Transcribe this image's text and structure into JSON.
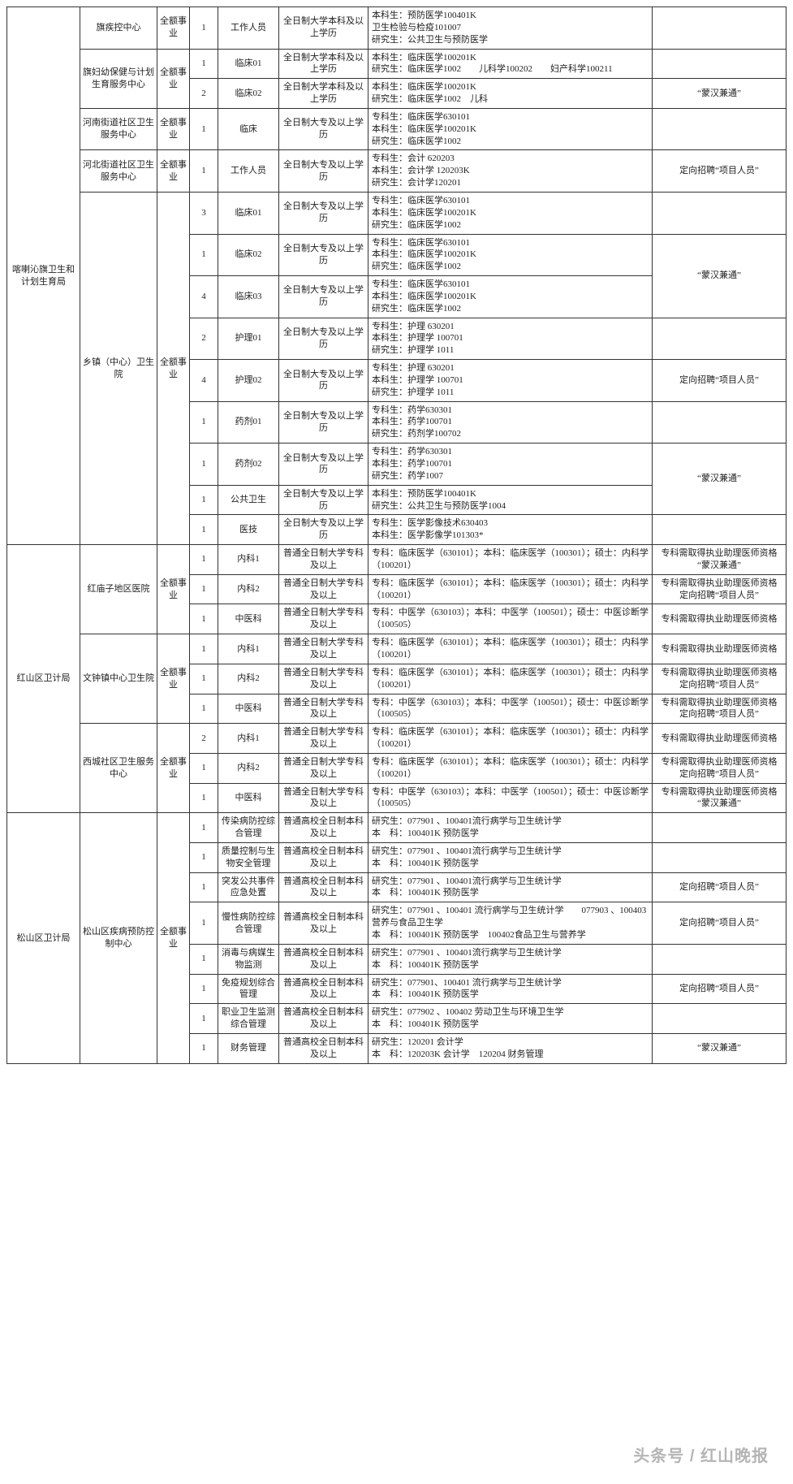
{
  "rows": [
    {
      "d": "喀喇沁旗卫生和计划生育局",
      "dspan": 14,
      "u": "旗疾控中心",
      "uspan": 1,
      "t": "全额事业",
      "tspan": 1,
      "n": "1",
      "p": "工作人员",
      "e": "全日制大学本科及以上学历",
      "m": "本科生：预防医学100401K\n卫生检验与检疫101007\n研究生：公共卫生与预防医学",
      "r": ""
    },
    {
      "u": "旗妇幼保健与计划生育服务中心",
      "uspan": 2,
      "t": "全额事业",
      "tspan": 2,
      "n": "1",
      "p": "临床01",
      "e": "全日制大学本科及以上学历",
      "m": "本科生：临床医学100201K\n研究生：临床医学1002　　儿科学100202　　妇产科学100211",
      "r": ""
    },
    {
      "n": "2",
      "p": "临床02",
      "e": "全日制大学本科及以上学历",
      "m": "本科生：临床医学100201K\n研究生：临床医学1002　儿科",
      "r": "“蒙汉兼通”"
    },
    {
      "u": "河南街道社区卫生服务中心",
      "uspan": 1,
      "t": "全额事业",
      "tspan": 1,
      "n": "1",
      "p": "临床",
      "e": "全日制大专及以上学历",
      "m": "专科生：临床医学630101\n本科生：临床医学100201K\n研究生：临床医学1002",
      "r": ""
    },
    {
      "u": "河北街道社区卫生服务中心",
      "uspan": 1,
      "t": "全额事业",
      "tspan": 1,
      "n": "1",
      "p": "工作人员",
      "e": "全日制大专及以上学历",
      "m": "专科生：会计 620203\n本科生：会计学 120203K\n研究生：会计学120201",
      "r": "定向招聘“项目人员”"
    },
    {
      "u": "乡镇（中心）卫生院",
      "uspan": 9,
      "t": "全额事业",
      "tspan": 9,
      "n": "3",
      "p": "临床01",
      "e": "全日制大专及以上学历",
      "m": "专科生：临床医学630101\n本科生：临床医学100201K\n研究生：临床医学1002",
      "r": ""
    },
    {
      "n": "1",
      "p": "临床02",
      "e": "全日制大专及以上学历",
      "m": "专科生：临床医学630101\n本科生：临床医学100201K\n研究生：临床医学1002",
      "r": "“蒙汉兼通”",
      "rspan": 2
    },
    {
      "n": "4",
      "p": "临床03",
      "e": "全日制大专及以上学历",
      "m": "专科生：临床医学630101\n本科生：临床医学100201K\n研究生：临床医学1002"
    },
    {
      "n": "2",
      "p": "护理01",
      "e": "全日制大专及以上学历",
      "m": "专科生：护理 630201\n本科生：护理学 100701\n研究生：护理学 1011",
      "r": ""
    },
    {
      "n": "4",
      "p": "护理02",
      "e": "全日制大专及以上学历",
      "m": "专科生：护理 630201\n本科生：护理学 100701\n研究生：护理学 1011",
      "r": "定向招聘“项目人员”"
    },
    {
      "n": "1",
      "p": "药剂01",
      "e": "全日制大专及以上学历",
      "m": "专科生：药学630301\n本科生：药学100701\n研究生：药剂学100702",
      "r": ""
    },
    {
      "n": "1",
      "p": "药剂02",
      "e": "全日制大专及以上学历",
      "m": "专科生：药学630301\n本科生：药学100701\n研究生：药学1007",
      "r": "“蒙汉兼通”",
      "rspan": 2
    },
    {
      "n": "1",
      "p": "公共卫生",
      "e": "全日制大专及以上学历",
      "m": "本科生：预防医学100401K\n研究生：公共卫生与预防医学1004"
    },
    {
      "n": "1",
      "p": "医技",
      "e": "全日制大专及以上学历",
      "m": "专科生：医学影像技术630403\n本科生：医学影像学101303*",
      "r": ""
    },
    {
      "d": "红山区卫计局",
      "dspan": 9,
      "u": "红庙子地区医院",
      "uspan": 3,
      "t": "全额事业",
      "tspan": 3,
      "n": "1",
      "p": "内科1",
      "e": "普通全日制大学专科及以上",
      "m": "专科：临床医学（630101）；本科：临床医学（100301）；硕士：内科学（100201）",
      "r": "专科需取得执业助理医师资格\n“蒙汉兼通”"
    },
    {
      "n": "1",
      "p": "内科2",
      "e": "普通全日制大学专科及以上",
      "m": "专科：临床医学（630101）；本科：临床医学（100301）；硕士：内科学（100201）",
      "r": "专科需取得执业助理医师资格\n定向招聘“项目人员”"
    },
    {
      "n": "1",
      "p": "中医科",
      "e": "普通全日制大学专科及以上",
      "m": "专科：中医学（630103）；本科：中医学（100501）；硕士：中医诊断学（100505）",
      "r": "专科需取得执业助理医师资格"
    },
    {
      "u": "文钟镇中心卫生院",
      "uspan": 3,
      "t": "全额事业",
      "tspan": 3,
      "n": "1",
      "p": "内科1",
      "e": "普通全日制大学专科及以上",
      "m": "专科：临床医学（630101）；本科：临床医学（100301）；硕士：内科学（100201）",
      "r": "专科需取得执业助理医师资格"
    },
    {
      "n": "1",
      "p": "内科2",
      "e": "普通全日制大学专科及以上",
      "m": "专科：临床医学（630101）；本科：临床医学（100301）；硕士：内科学（100201）",
      "r": "专科需取得执业助理医师资格\n定向招聘“项目人员”"
    },
    {
      "n": "1",
      "p": "中医科",
      "e": "普通全日制大学专科及以上",
      "m": "专科：中医学（630103）；本科：中医学（100501）；硕士：中医诊断学（100505）",
      "r": "专科需取得执业助理医师资格\n定向招聘“项目人员”"
    },
    {
      "u": "西城社区卫生服务中心",
      "uspan": 3,
      "t": "全额事业",
      "tspan": 3,
      "n": "2",
      "p": "内科1",
      "e": "普通全日制大学专科及以上",
      "m": "专科：临床医学（630101）；本科：临床医学（100301）；硕士：内科学（100201）",
      "r": "专科需取得执业助理医师资格"
    },
    {
      "n": "1",
      "p": "内科2",
      "e": "普通全日制大学专科及以上",
      "m": "专科：临床医学（630101）；本科：临床医学（100301）；硕士：内科学（100201）",
      "r": "专科需取得执业助理医师资格\n定向招聘“项目人员”"
    },
    {
      "n": "1",
      "p": "中医科",
      "e": "普通全日制大学专科及以上",
      "m": "专科：中医学（630103）；本科：中医学（100501）；硕士：中医诊断学（100505）",
      "r": "专科需取得执业助理医师资格\n“蒙汉兼通”"
    },
    {
      "d": "松山区卫计局",
      "dspan": 8,
      "u": "松山区疾病预防控制中心",
      "uspan": 8,
      "t": "全额事业",
      "tspan": 8,
      "n": "1",
      "p": "传染病防控综合管理",
      "e": "普通高校全日制本科及以上",
      "m": "研究生：077901 、100401流行病学与卫生统计学\n本　科：100401K 预防医学",
      "r": ""
    },
    {
      "n": "1",
      "p": "质量控制与生物安全管理",
      "e": "普通高校全日制本科及以上",
      "m": "研究生：077901 、100401流行病学与卫生统计学\n本　科：100401K 预防医学",
      "r": ""
    },
    {
      "n": "1",
      "p": "突发公共事件应急处置",
      "e": "普通高校全日制本科及以上",
      "m": "研究生：077901 、100401流行病学与卫生统计学\n本　科：100401K 预防医学",
      "r": "定向招聘“项目人员”"
    },
    {
      "n": "1",
      "p": "慢性病防控综合管理",
      "e": "普通高校全日制本科及以上",
      "m": "研究生：077901 、100401 流行病学与卫生统计学　　077903 、100403 营养与食品卫生学\n本　科：100401K 预防医学　100402食品卫生与营养学",
      "r": "定向招聘“项目人员”"
    },
    {
      "n": "1",
      "p": "消毒与病媒生物监测",
      "e": "普通高校全日制本科及以上",
      "m": "研究生：077901 、100401流行病学与卫生统计学\n本　科：100401K 预防医学",
      "r": ""
    },
    {
      "n": "1",
      "p": "免疫规划综合管理",
      "e": "普通高校全日制本科及以上",
      "m": "研究生：077901、100401 流行病学与卫生统计学\n本　科：100401K 预防医学",
      "r": "定向招聘“项目人员”"
    },
    {
      "n": "1",
      "p": "职业卫生监测综合管理",
      "e": "普通高校全日制本科及以上",
      "m": "研究生：077902 、100402 劳动卫生与环境卫生学\n本　科：100401K 预防医学",
      "r": ""
    },
    {
      "n": "1",
      "p": "财务管理",
      "e": "普通高校全日制本科及以上",
      "m": "研究生：120201 会计学\n本　科：120203K 会计学　120204 财务管理",
      "r": "“蒙汉兼通”"
    }
  ],
  "watermark": "头条号 / 红山晚报"
}
